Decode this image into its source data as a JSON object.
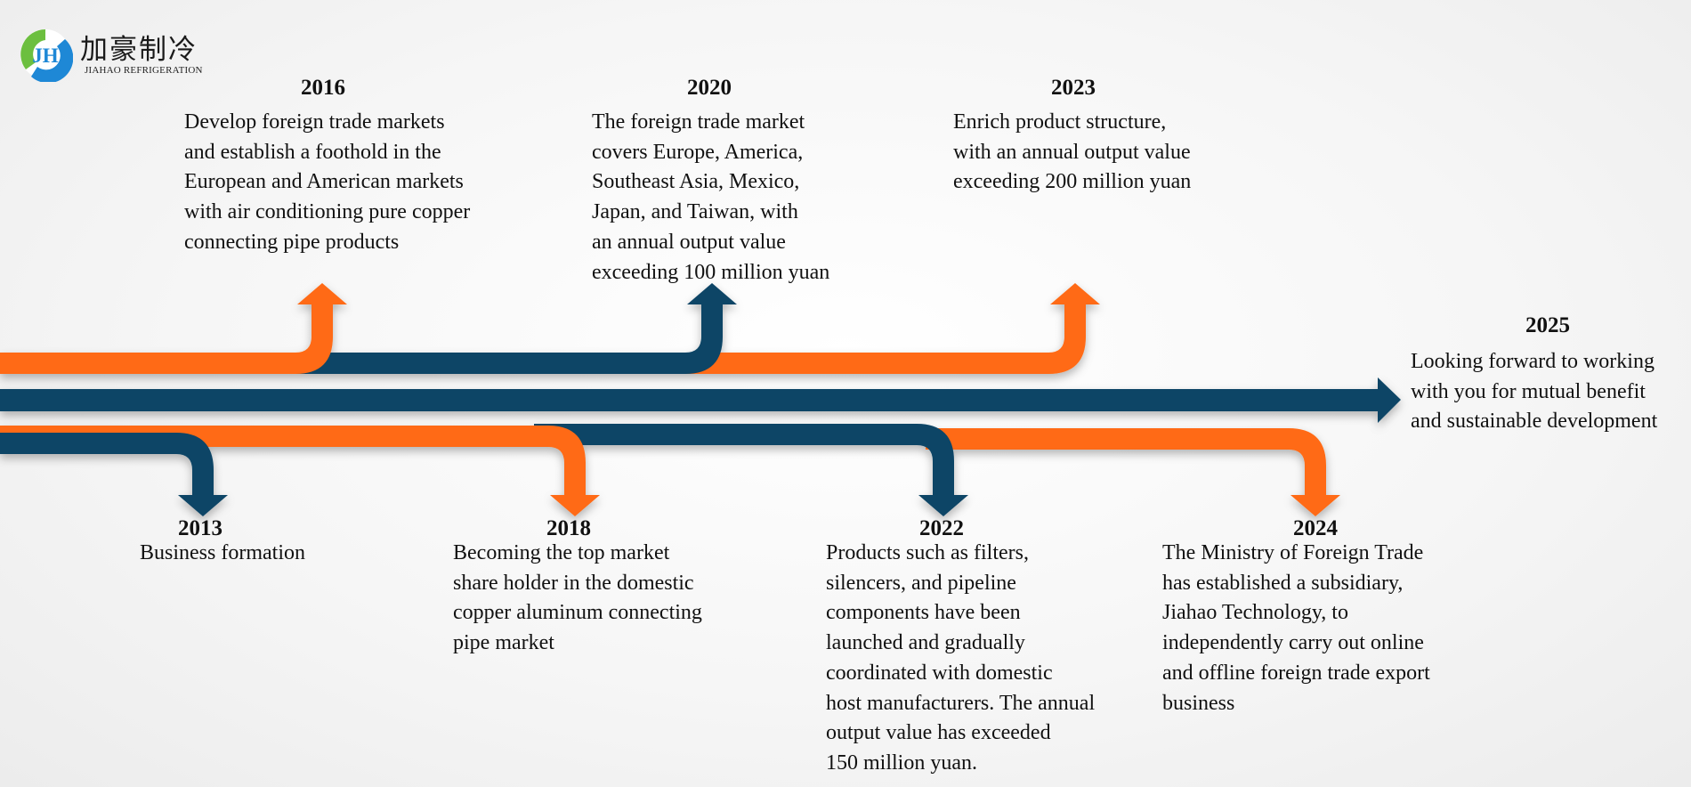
{
  "logo": {
    "name_cn": "加豪制冷",
    "name_en": "JIAHAO REFRIGERATION",
    "mark_letters": "JH",
    "colors": {
      "green": "#6cbf3f",
      "blue": "#1e88d6"
    }
  },
  "colors": {
    "orange": "#ff6a13",
    "navy": "#0b4566"
  },
  "events": [
    {
      "year": "2013",
      "lines": [
        "Business formation"
      ]
    },
    {
      "year": "2016",
      "lines": [
        "Develop foreign trade markets",
        "and establish a foothold in the",
        "European and American markets",
        "with air conditioning pure copper",
        "connecting pipe products"
      ]
    },
    {
      "year": "2018",
      "lines": [
        "Becoming the top market",
        "share holder in the domestic",
        "copper aluminum connecting",
        "pipe market"
      ]
    },
    {
      "year": "2020",
      "lines": [
        "The foreign trade market",
        "covers Europe, America,",
        "Southeast Asia, Mexico,",
        "Japan, and Taiwan, with",
        "an annual output value",
        "exceeding 100 million yuan"
      ]
    },
    {
      "year": "2022",
      "lines": [
        "Products such as filters,",
        "silencers, and pipeline",
        "components have been",
        "launched and gradually",
        "coordinated with domestic",
        "host manufacturers. The annual",
        "output value has exceeded",
        "150 million yuan."
      ]
    },
    {
      "year": "2023",
      "lines": [
        "Enrich product structure,",
        "with an annual output value",
        "exceeding 200 million yuan"
      ]
    },
    {
      "year": "2024",
      "lines": [
        "The Ministry of Foreign Trade",
        "has established a subsidiary,",
        "Jiahao Technology, to",
        "independently carry out online",
        "and offline foreign trade export",
        "business"
      ]
    },
    {
      "year": "2025",
      "lines": [
        "Looking forward to working",
        "with you for mutual benefit",
        "and sustainable development"
      ]
    }
  ]
}
